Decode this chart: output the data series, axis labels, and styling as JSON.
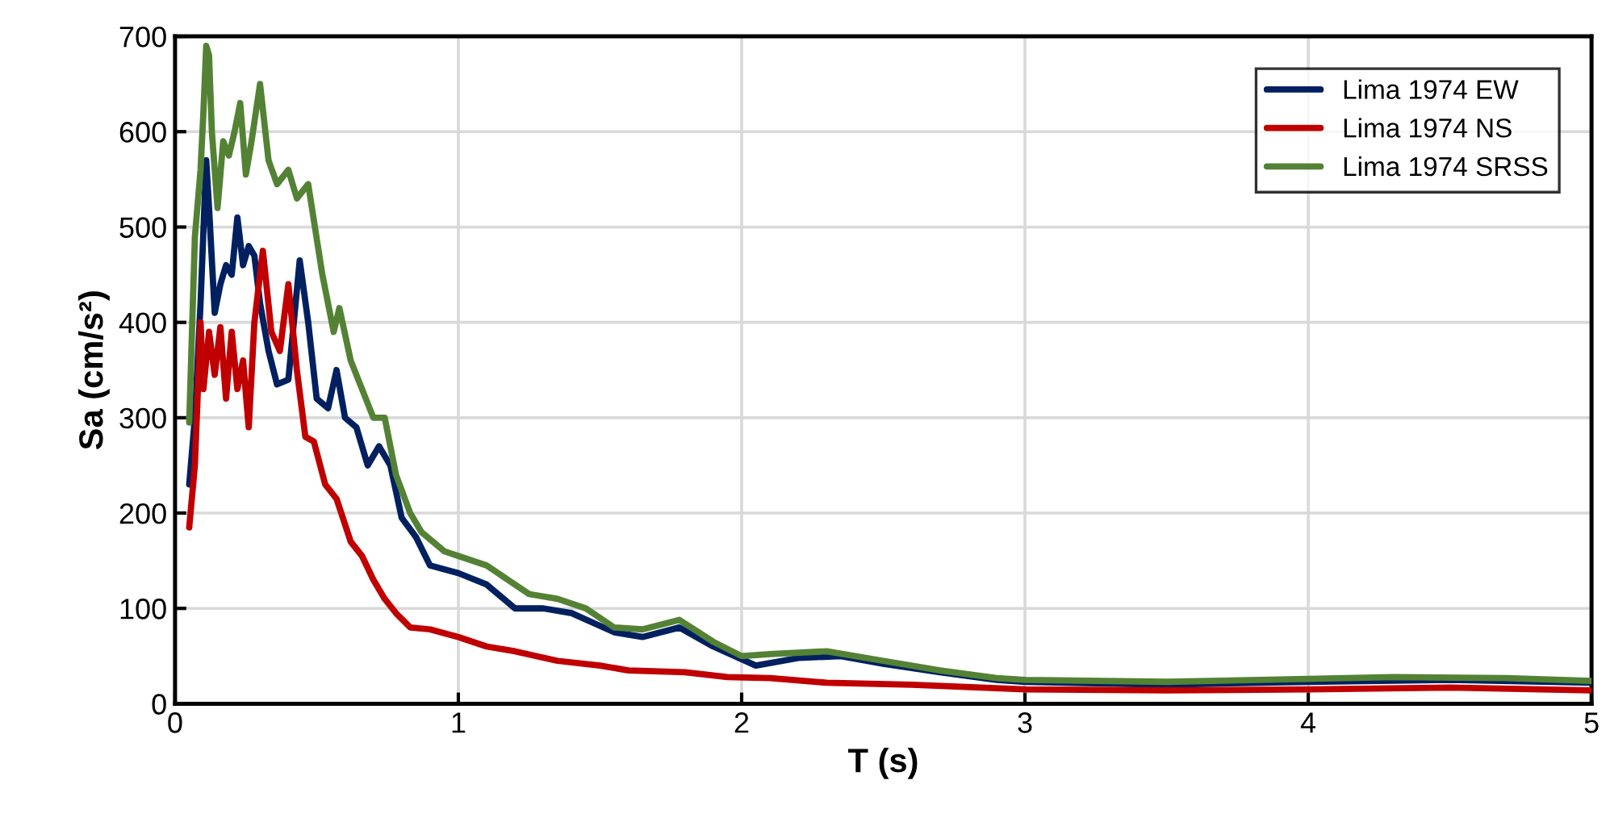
{
  "chart_data": {
    "type": "line",
    "xlabel": "T (s)",
    "ylabel": "Sa (cm/s²)",
    "xlim": [
      0,
      5
    ],
    "xticks": [
      0,
      1,
      2,
      3,
      4,
      5
    ],
    "ylim": [
      0,
      700
    ],
    "yticks": [
      0,
      100,
      200,
      300,
      400,
      500,
      600,
      700
    ],
    "grid": true,
    "legend": "top right",
    "series": [
      {
        "name": "Lima 1974 EW",
        "color": "#002060",
        "x": [
          0.05,
          0.07,
          0.09,
          0.11,
          0.12,
          0.14,
          0.16,
          0.18,
          0.2,
          0.22,
          0.24,
          0.26,
          0.28,
          0.3,
          0.33,
          0.36,
          0.4,
          0.44,
          0.47,
          0.5,
          0.54,
          0.57,
          0.6,
          0.64,
          0.68,
          0.72,
          0.76,
          0.8,
          0.85,
          0.9,
          1.0,
          1.1,
          1.2,
          1.3,
          1.4,
          1.55,
          1.65,
          1.78,
          1.9,
          2.05,
          2.2,
          2.35,
          2.5,
          2.7,
          2.9,
          3.0,
          3.5,
          4.0,
          4.5,
          5.0
        ],
        "values": [
          230,
          300,
          420,
          570,
          520,
          410,
          440,
          460,
          450,
          510,
          460,
          480,
          470,
          420,
          370,
          335,
          340,
          465,
          400,
          320,
          310,
          350,
          300,
          290,
          250,
          270,
          250,
          195,
          175,
          145,
          137,
          125,
          100,
          100,
          95,
          75,
          70,
          80,
          60,
          40,
          48,
          50,
          42,
          33,
          25,
          23,
          20,
          23,
          25,
          22
        ]
      },
      {
        "name": "Lima 1974 NS",
        "color": "#c00000",
        "x": [
          0.05,
          0.07,
          0.09,
          0.1,
          0.12,
          0.14,
          0.16,
          0.18,
          0.2,
          0.22,
          0.24,
          0.26,
          0.28,
          0.31,
          0.34,
          0.37,
          0.4,
          0.43,
          0.46,
          0.49,
          0.53,
          0.57,
          0.62,
          0.66,
          0.7,
          0.74,
          0.78,
          0.83,
          0.9,
          1.0,
          1.1,
          1.2,
          1.35,
          1.5,
          1.6,
          1.8,
          1.95,
          2.1,
          2.3,
          2.6,
          3.0,
          3.5,
          4.0,
          4.5,
          5.0
        ],
        "values": [
          185,
          250,
          400,
          330,
          390,
          345,
          395,
          320,
          390,
          330,
          360,
          290,
          400,
          475,
          390,
          370,
          440,
          350,
          280,
          275,
          230,
          215,
          170,
          155,
          130,
          110,
          95,
          80,
          78,
          70,
          60,
          55,
          45,
          40,
          35,
          33,
          28,
          27,
          22,
          20,
          15,
          14,
          15,
          17,
          14
        ]
      },
      {
        "name": "Lima 1974 SRSS",
        "color": "#548235",
        "x": [
          0.05,
          0.07,
          0.09,
          0.1,
          0.11,
          0.12,
          0.13,
          0.15,
          0.17,
          0.19,
          0.21,
          0.23,
          0.25,
          0.27,
          0.3,
          0.33,
          0.36,
          0.4,
          0.43,
          0.47,
          0.52,
          0.56,
          0.58,
          0.62,
          0.66,
          0.7,
          0.74,
          0.78,
          0.83,
          0.87,
          0.95,
          1.0,
          1.1,
          1.2,
          1.25,
          1.35,
          1.45,
          1.55,
          1.65,
          1.78,
          1.9,
          2.0,
          2.1,
          2.3,
          2.5,
          2.7,
          2.9,
          3.0,
          3.5,
          4.0,
          4.3,
          4.7,
          5.0
        ],
        "values": [
          295,
          490,
          560,
          620,
          690,
          680,
          600,
          520,
          590,
          575,
          600,
          630,
          555,
          590,
          650,
          570,
          545,
          560,
          530,
          545,
          450,
          390,
          415,
          360,
          330,
          300,
          300,
          240,
          200,
          180,
          160,
          155,
          145,
          125,
          115,
          110,
          100,
          80,
          78,
          88,
          65,
          50,
          52,
          55,
          45,
          35,
          27,
          25,
          23,
          26,
          28,
          27,
          24
        ]
      }
    ]
  }
}
